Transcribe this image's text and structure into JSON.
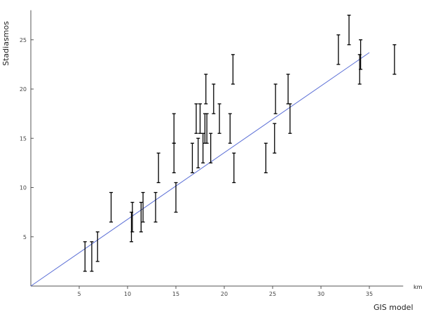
{
  "chart_data": {
    "type": "scatter",
    "title": "",
    "xlabel": "GIS model",
    "x_unit": "km",
    "ylabel": "Stadiasmos",
    "xlim": [
      0,
      38.5
    ],
    "ylim": [
      0,
      28
    ],
    "x_ticks": [
      5,
      10,
      15,
      20,
      25,
      30,
      35
    ],
    "y_ticks": [
      5,
      10,
      15,
      20,
      25
    ],
    "grid": false,
    "colors": {
      "errorbar": "#000000",
      "fit_line": "#5b6fd6",
      "axis": "#555555"
    },
    "fit_line": {
      "x": [
        0,
        35
      ],
      "y": [
        0,
        23.7
      ]
    },
    "series": [
      {
        "points": [
          {
            "x": 5.6,
            "y_low": 1.5,
            "y_high": 4.5
          },
          {
            "x": 6.3,
            "y_low": 1.5,
            "y_high": 4.5
          },
          {
            "x": 6.9,
            "y_low": 2.5,
            "y_high": 5.5
          },
          {
            "x": 8.3,
            "y_low": 6.5,
            "y_high": 9.5
          },
          {
            "x": 10.4,
            "y_low": 4.5,
            "y_high": 7.5
          },
          {
            "x": 10.5,
            "y_low": 5.5,
            "y_high": 8.5
          },
          {
            "x": 11.4,
            "y_low": 5.5,
            "y_high": 8.5
          },
          {
            "x": 11.6,
            "y_low": 6.5,
            "y_high": 9.5
          },
          {
            "x": 12.9,
            "y_low": 6.5,
            "y_high": 9.5
          },
          {
            "x": 13.2,
            "y_low": 10.5,
            "y_high": 13.5
          },
          {
            "x": 14.8,
            "y_low": 11.5,
            "y_high": 14.5
          },
          {
            "x": 14.8,
            "y_low": 14.5,
            "y_high": 17.5
          },
          {
            "x": 15.0,
            "y_low": 7.5,
            "y_high": 10.5
          },
          {
            "x": 16.7,
            "y_low": 11.5,
            "y_high": 14.5
          },
          {
            "x": 17.1,
            "y_low": 15.5,
            "y_high": 18.5
          },
          {
            "x": 17.3,
            "y_low": 12.0,
            "y_high": 15.0
          },
          {
            "x": 17.5,
            "y_low": 15.5,
            "y_high": 18.5
          },
          {
            "x": 17.8,
            "y_low": 12.5,
            "y_high": 15.5
          },
          {
            "x": 18.0,
            "y_low": 14.5,
            "y_high": 17.5
          },
          {
            "x": 18.1,
            "y_low": 18.5,
            "y_high": 21.5
          },
          {
            "x": 18.2,
            "y_low": 14.5,
            "y_high": 17.5
          },
          {
            "x": 18.6,
            "y_low": 12.5,
            "y_high": 15.5
          },
          {
            "x": 18.9,
            "y_low": 17.5,
            "y_high": 20.5
          },
          {
            "x": 19.5,
            "y_low": 15.5,
            "y_high": 18.5
          },
          {
            "x": 20.6,
            "y_low": 14.5,
            "y_high": 17.5
          },
          {
            "x": 20.9,
            "y_low": 20.5,
            "y_high": 23.5
          },
          {
            "x": 21.0,
            "y_low": 10.5,
            "y_high": 13.5
          },
          {
            "x": 24.3,
            "y_low": 11.5,
            "y_high": 14.5
          },
          {
            "x": 25.2,
            "y_low": 13.5,
            "y_high": 16.5
          },
          {
            "x": 25.3,
            "y_low": 17.5,
            "y_high": 20.5
          },
          {
            "x": 26.6,
            "y_low": 18.5,
            "y_high": 21.5
          },
          {
            "x": 26.8,
            "y_low": 15.5,
            "y_high": 18.5
          },
          {
            "x": 31.8,
            "y_low": 22.5,
            "y_high": 25.5
          },
          {
            "x": 32.9,
            "y_low": 24.5,
            "y_high": 27.5
          },
          {
            "x": 34.0,
            "y_low": 20.5,
            "y_high": 23.5
          },
          {
            "x": 34.1,
            "y_low": 22.0,
            "y_high": 25.0
          },
          {
            "x": 37.6,
            "y_low": 21.5,
            "y_high": 24.5
          }
        ]
      }
    ]
  }
}
